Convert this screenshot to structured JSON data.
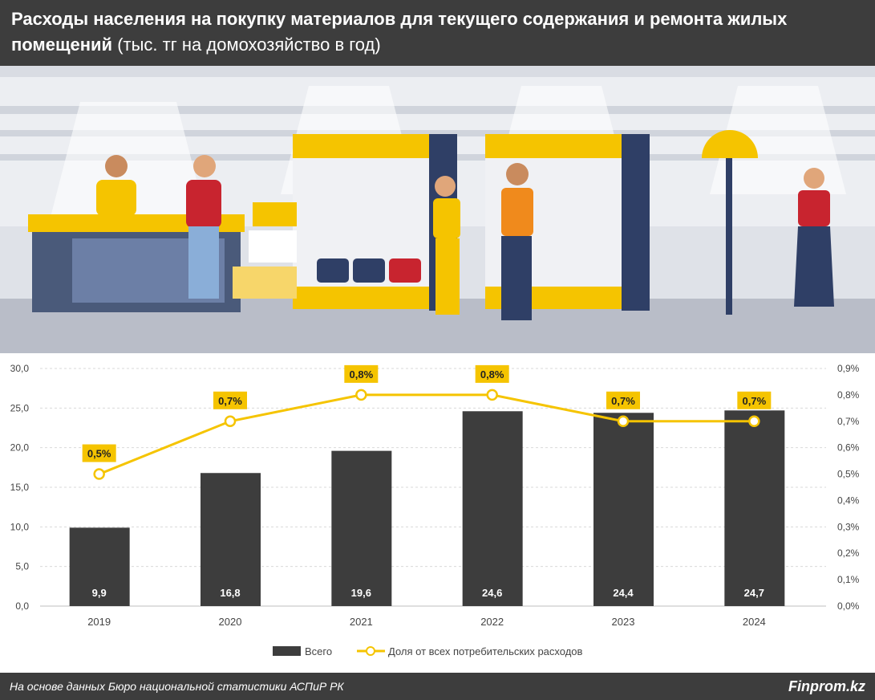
{
  "header": {
    "title_bold": "Расходы населения на покупку материалов для текущего содержания и ремонта жилых помещений",
    "title_unit": "(тыс. тг на домохозяйство в год)"
  },
  "footer": {
    "source": "На основе данных Бюро национальной статистики АСПиР РК",
    "brand": "Finprom.kz"
  },
  "colors": {
    "bar": "#3d3d3d",
    "line": "#f5c400",
    "label_bg": "#f5c400"
  },
  "chart_data": {
    "type": "bar+line",
    "categories": [
      "2019",
      "2020",
      "2021",
      "2022",
      "2023",
      "2024"
    ],
    "series": [
      {
        "name": "Всего",
        "type": "bar",
        "axis": "left",
        "values": [
          9.9,
          16.8,
          19.6,
          24.6,
          24.4,
          24.7
        ],
        "labels": [
          "9,9",
          "16,8",
          "19,6",
          "24,6",
          "24,4",
          "24,7"
        ]
      },
      {
        "name": "Доля от всех потребительских расходов",
        "type": "line",
        "axis": "right",
        "values": [
          0.5,
          0.7,
          0.8,
          0.8,
          0.7,
          0.7
        ],
        "labels": [
          "0,5%",
          "0,7%",
          "0,8%",
          "0,8%",
          "0,7%",
          "0,7%"
        ]
      }
    ],
    "left_axis": {
      "ylim": [
        0,
        30
      ],
      "ticks": [
        "0,0",
        "5,0",
        "10,0",
        "15,0",
        "20,0",
        "25,0",
        "30,0"
      ]
    },
    "right_axis": {
      "ylim": [
        0,
        0.9
      ],
      "ticks": [
        "0,0%",
        "0,1%",
        "0,2%",
        "0,3%",
        "0,4%",
        "0,5%",
        "0,6%",
        "0,7%",
        "0,8%",
        "0,9%"
      ]
    },
    "grid": true,
    "legend": "bottom"
  }
}
